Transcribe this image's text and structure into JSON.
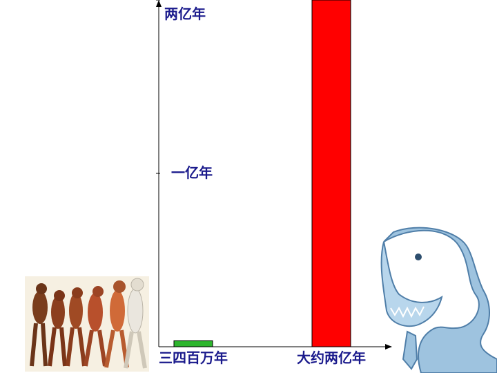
{
  "chart_data": {
    "type": "bar",
    "categories": [
      "三四百万年",
      "大约两亿年"
    ],
    "values": [
      3500000,
      200000000
    ],
    "ylim": [
      0,
      200000000
    ],
    "y_tick_labels": [
      {
        "value": 100000000,
        "label": "一亿年"
      },
      {
        "value": 200000000,
        "label": "两亿年"
      }
    ],
    "colors": [
      "#2db52d",
      "#ff0000"
    ],
    "grid": false,
    "legend": "none"
  },
  "illustrations": {
    "left": "human-evolution-march",
    "right": "dinosaur-head"
  }
}
